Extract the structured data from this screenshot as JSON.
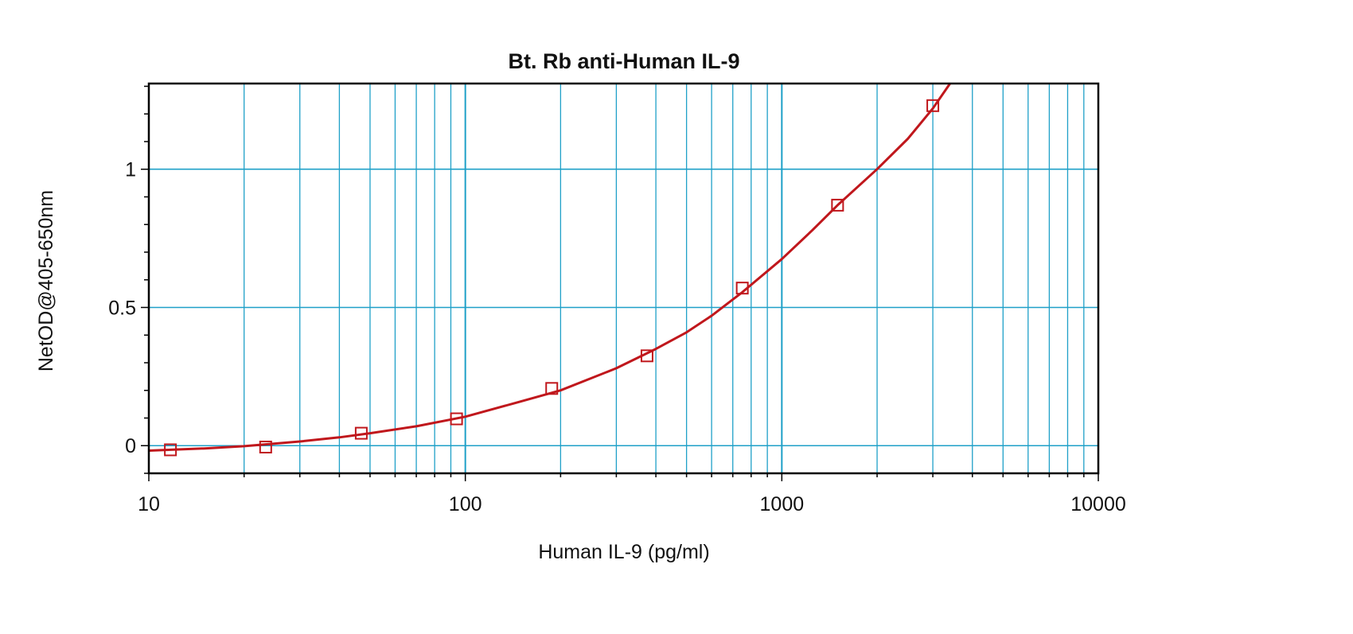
{
  "chart_data": {
    "type": "scatter",
    "title": "Bt. Rb anti-Human IL-9",
    "xlabel": "Human IL-9 (pg/ml)",
    "ylabel": "NetOD@405-650nm",
    "x_scale": "log",
    "xlim": [
      10,
      10000
    ],
    "ylim": [
      -0.1,
      1.31
    ],
    "x_tick_labels": [
      "10",
      "100",
      "1000",
      "10000"
    ],
    "x_tick_values": [
      10,
      100,
      1000,
      10000
    ],
    "y_tick_labels": [
      "0",
      "0.5",
      "1"
    ],
    "y_tick_values": [
      0,
      0.5,
      1
    ],
    "grid": true,
    "series": [
      {
        "points": [
          {
            "x": 11.7,
            "y": -0.015
          },
          {
            "x": 23.4,
            "y": -0.005
          },
          {
            "x": 46.9,
            "y": 0.045
          },
          {
            "x": 93.8,
            "y": 0.097
          },
          {
            "x": 187.5,
            "y": 0.207
          },
          {
            "x": 375,
            "y": 0.325
          },
          {
            "x": 750,
            "y": 0.57
          },
          {
            "x": 1500,
            "y": 0.87
          },
          {
            "x": 3000,
            "y": 1.23
          }
        ],
        "fit_curve": [
          {
            "x": 10,
            "y": -0.018
          },
          {
            "x": 15,
            "y": -0.01
          },
          {
            "x": 20,
            "y": -0.002
          },
          {
            "x": 30,
            "y": 0.015
          },
          {
            "x": 40,
            "y": 0.03
          },
          {
            "x": 50,
            "y": 0.045
          },
          {
            "x": 70,
            "y": 0.07
          },
          {
            "x": 100,
            "y": 0.105
          },
          {
            "x": 150,
            "y": 0.16
          },
          {
            "x": 200,
            "y": 0.2
          },
          {
            "x": 300,
            "y": 0.28
          },
          {
            "x": 400,
            "y": 0.35
          },
          {
            "x": 500,
            "y": 0.41
          },
          {
            "x": 600,
            "y": 0.47
          },
          {
            "x": 750,
            "y": 0.555
          },
          {
            "x": 1000,
            "y": 0.675
          },
          {
            "x": 1250,
            "y": 0.78
          },
          {
            "x": 1500,
            "y": 0.87
          },
          {
            "x": 2000,
            "y": 1.0
          },
          {
            "x": 2500,
            "y": 1.11
          },
          {
            "x": 3000,
            "y": 1.22
          },
          {
            "x": 3400,
            "y": 1.31
          }
        ],
        "color": "#c0171c"
      }
    ],
    "colors": {
      "grid": "#1fa0c8",
      "frame": "#000000",
      "series": "#c0171c"
    }
  }
}
